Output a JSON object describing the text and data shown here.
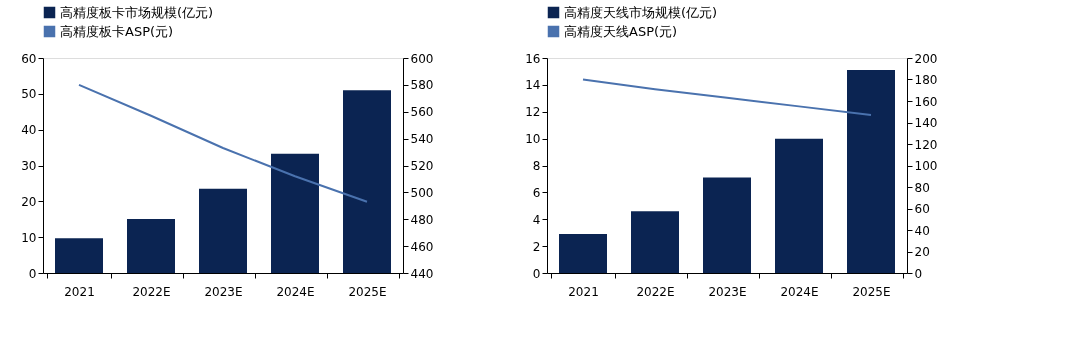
{
  "chart_data": [
    {
      "type": "bar",
      "categories": [
        "2021",
        "2022E",
        "2023E",
        "2024E",
        "2025E"
      ],
      "legend": "top",
      "grid": false,
      "ylim": [
        0,
        60
      ],
      "yticks": [
        0,
        10,
        20,
        30,
        40,
        50,
        60
      ],
      "y2lim": [
        440,
        600
      ],
      "y2ticks": [
        440,
        460,
        480,
        500,
        520,
        540,
        560,
        580,
        600
      ],
      "series": [
        {
          "name": "高精度板卡市场规模(亿元)",
          "color": "#0b2452",
          "values": [
            9.7,
            15.1,
            23.5,
            33.3,
            51
          ]
        },
        {
          "name": "高精度板卡ASP(元)",
          "type": "line",
          "axis": "y2",
          "color": "#4a72ae",
          "values": [
            580,
            557,
            533,
            512,
            493
          ]
        }
      ]
    },
    {
      "type": "bar",
      "categories": [
        "2021",
        "2022E",
        "2023E",
        "2024E",
        "2025E"
      ],
      "legend": "top",
      "grid": false,
      "ylim": [
        0,
        16
      ],
      "yticks": [
        0,
        2,
        4,
        6,
        8,
        10,
        12,
        14,
        16
      ],
      "y2lim": [
        0,
        200
      ],
      "y2ticks": [
        0,
        20,
        40,
        60,
        80,
        100,
        120,
        140,
        160,
        180,
        200
      ],
      "series": [
        {
          "name": "高精度天线市场规模(亿元)",
          "color": "#0b2452",
          "values": [
            2.9,
            4.6,
            7.1,
            10,
            15.1
          ]
        },
        {
          "name": "高精度天线ASP(元)",
          "type": "line",
          "axis": "y2",
          "color": "#4a72ae",
          "values": [
            180,
            171,
            163,
            155,
            147
          ]
        }
      ]
    }
  ]
}
